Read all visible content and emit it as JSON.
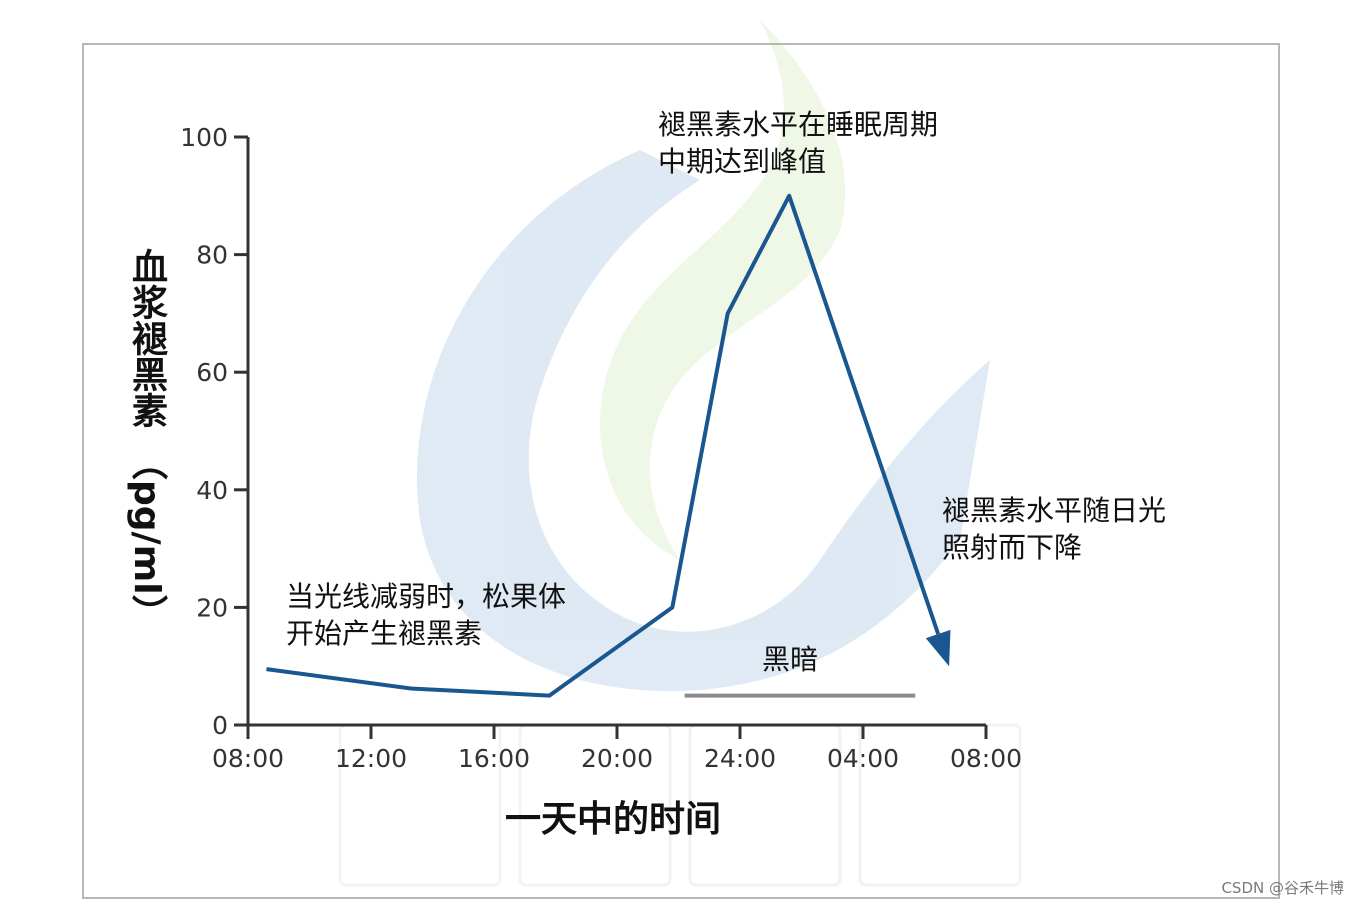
{
  "chart_data": {
    "type": "line",
    "title": "",
    "xlabel": "一天中的时间",
    "ylabel": "血浆褪黑素（pg/ml）",
    "ylabel_main": "血浆褪黑素",
    "ylabel_unit": "（pg/ml）",
    "x_ticks": [
      "08:00",
      "12:00",
      "16:00",
      "20:00",
      "24:00",
      "04:00",
      "08:00"
    ],
    "y_ticks": [
      0,
      20,
      40,
      60,
      80,
      100
    ],
    "ylim": [
      0,
      100
    ],
    "x_hours_since_0800_range": [
      0,
      24
    ],
    "series": [
      {
        "color": "#1a5790",
        "x": [
          "08:40",
          "13:20",
          "17:50",
          "21:50",
          "23:40",
          "24:40",
          "25:40",
          "30:50"
        ],
        "x_hours": [
          0.6,
          5.3,
          9.8,
          13.8,
          15.6,
          16.6,
          17.6,
          22.8
        ],
        "values": [
          9.5,
          6.2,
          5.0,
          20.0,
          70.0,
          80.0,
          90.0,
          10.0
        ]
      }
    ],
    "dark_period": {
      "label": "黑暗",
      "start_hours": 14.2,
      "end_hours": 21.7,
      "color": "#8c8c8c"
    },
    "annotations": [
      {
        "lines": [
          "当光线减弱时，松果体",
          "开始产生褪黑素"
        ]
      },
      {
        "lines": [
          "褪黑素水平在睡眠周期",
          "中期达到峰值"
        ]
      },
      {
        "lines": [
          "褪黑素水平随日光",
          "照射而下降"
        ]
      }
    ],
    "grid": false,
    "legend": "none"
  },
  "watermark": "CSDN @谷禾牛博",
  "colors": {
    "line": "#1a5790",
    "axis": "#333333",
    "dark_bar": "#8c8c8c",
    "frame": "#b8b8b8"
  }
}
